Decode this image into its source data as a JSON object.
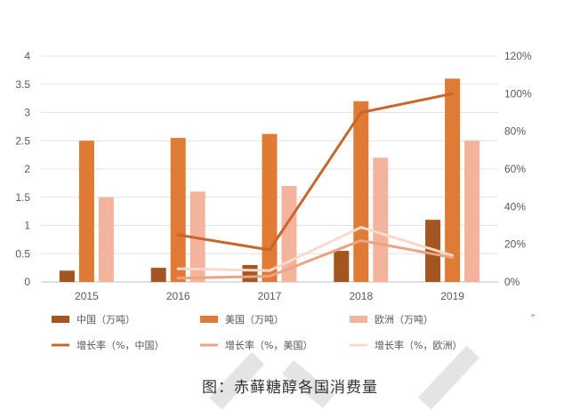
{
  "caption": "图：赤藓糖醇各国消费量",
  "chart_data": {
    "type": "bar",
    "categories": [
      "2015",
      "2016",
      "2017",
      "2018",
      "2019"
    ],
    "left_axis": {
      "ticks": [
        "0",
        "0.5",
        "1",
        "1.5",
        "2",
        "2.5",
        "3",
        "3.5",
        "4"
      ],
      "ylim": [
        0,
        4
      ]
    },
    "right_axis": {
      "ticks": [
        "0%",
        "20%",
        "40%",
        "60%",
        "80%",
        "100%",
        "120%"
      ],
      "ylim": [
        0,
        120
      ]
    },
    "series": [
      {
        "name": "中国（万吨）",
        "kind": "bar",
        "axis": "left",
        "color": "#a35522",
        "values": [
          0.2,
          0.25,
          0.3,
          0.55,
          1.1
        ]
      },
      {
        "name": "美国（万吨）",
        "kind": "bar",
        "axis": "left",
        "color": "#e07b35",
        "values": [
          2.5,
          2.55,
          2.62,
          3.2,
          3.6
        ]
      },
      {
        "name": "欧洲（万吨）",
        "kind": "bar",
        "axis": "left",
        "color": "#f4b49c",
        "values": [
          1.5,
          1.6,
          1.7,
          2.2,
          2.5
        ]
      },
      {
        "name": "增长率（%，中国）",
        "kind": "line",
        "axis": "right",
        "color": "#c8672c",
        "values": [
          null,
          25,
          17,
          90,
          100
        ]
      },
      {
        "name": "增长率（%，美国）",
        "kind": "line",
        "axis": "right",
        "color": "#eba383",
        "values": [
          null,
          2,
          3,
          22,
          13
        ]
      },
      {
        "name": "增长率（%，欧洲）",
        "kind": "line",
        "axis": "right",
        "color": "#f8d9cb",
        "values": [
          null,
          7,
          6,
          29,
          14
        ]
      }
    ],
    "grid": true,
    "legend_position": "bottom"
  }
}
